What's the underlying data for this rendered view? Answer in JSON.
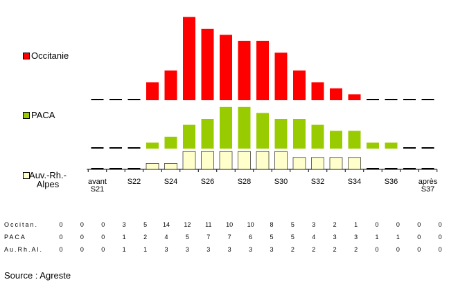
{
  "chart_data": {
    "type": "bar",
    "categories": [
      "avant S21",
      null,
      "S22",
      null,
      "S24",
      null,
      "S26",
      null,
      "S28",
      null,
      "S30",
      null,
      "S32",
      null,
      "S34",
      null,
      "S36",
      null,
      "après S37"
    ],
    "series": [
      {
        "name": "Occitanie",
        "table_label": "Occitan.",
        "color": "#ff0000",
        "values": [
          0,
          0,
          0,
          3,
          5,
          14,
          12,
          11,
          10,
          10,
          8,
          5,
          3,
          2,
          1,
          0,
          0,
          0,
          0
        ]
      },
      {
        "name": "PACA",
        "table_label": "PACA",
        "color": "#99cc00",
        "values": [
          0,
          0,
          0,
          1,
          2,
          4,
          5,
          7,
          7,
          6,
          5,
          5,
          4,
          3,
          3,
          1,
          1,
          0,
          0
        ]
      },
      {
        "name": "Auv.-Rh.-Alpes",
        "table_label": "Au.Rh.Al.",
        "color": "#ffffcc",
        "values": [
          0,
          0,
          0,
          1,
          1,
          3,
          3,
          3,
          3,
          3,
          3,
          2,
          2,
          2,
          2,
          0,
          0,
          0,
          0
        ]
      }
    ],
    "source": "Source : Agreste"
  }
}
